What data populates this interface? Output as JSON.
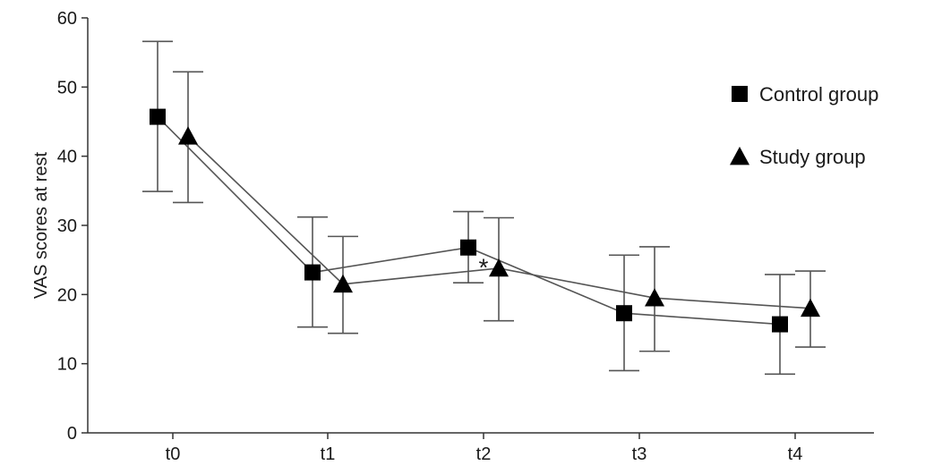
{
  "chart_data": {
    "type": "line",
    "title": "",
    "xlabel": "",
    "ylabel": "VAS scores at rest",
    "ylim": [
      0,
      60
    ],
    "yticks": [
      0,
      10,
      20,
      30,
      40,
      50,
      60
    ],
    "categories": [
      "t0",
      "t1",
      "t2",
      "t3",
      "t4"
    ],
    "grid": false,
    "legend_position": "top-right",
    "series": [
      {
        "name": "Control group",
        "marker": "square",
        "color": "#000000",
        "values": [
          45.7,
          23.2,
          26.8,
          17.3,
          15.7
        ],
        "error_low": [
          34.9,
          15.3,
          21.7,
          9.0,
          8.5
        ],
        "error_high": [
          56.6,
          31.2,
          32.0,
          25.7,
          22.9
        ]
      },
      {
        "name": "Study group",
        "marker": "triangle",
        "color": "#000000",
        "values": [
          42.9,
          21.5,
          23.8,
          19.5,
          18.0
        ],
        "error_low": [
          33.3,
          14.4,
          16.2,
          11.8,
          12.4
        ],
        "error_high": [
          52.2,
          28.4,
          31.1,
          26.9,
          23.4
        ]
      }
    ],
    "annotations": [
      {
        "text": "*",
        "category": "t2",
        "value": 25
      }
    ]
  }
}
